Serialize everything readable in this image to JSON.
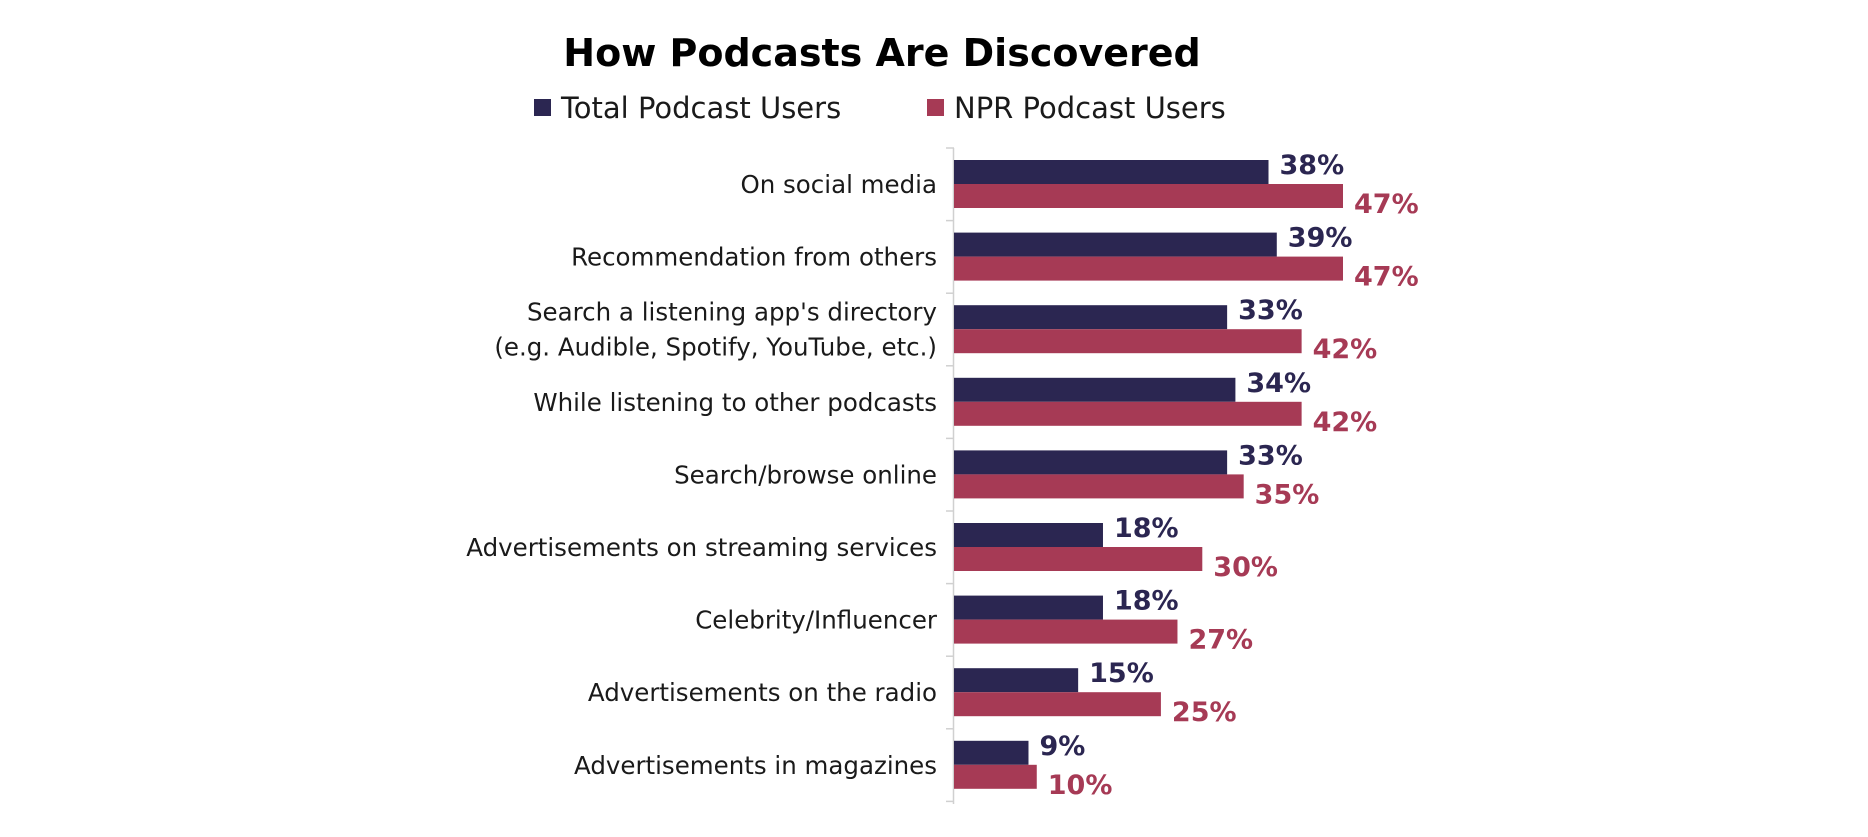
{
  "chart_data": {
    "type": "bar",
    "orientation": "horizontal",
    "title": "How Podcasts Are Discovered",
    "categories": [
      [
        "On social media"
      ],
      [
        "Recommendation from others"
      ],
      [
        "Search a listening app's directory",
        "(e.g. Audible, Spotify, YouTube, etc.)"
      ],
      [
        "While listening to other podcasts"
      ],
      [
        "Search/browse online"
      ],
      [
        "Advertisements on streaming services"
      ],
      [
        "Celebrity/Influencer"
      ],
      [
        "Advertisements on the radio"
      ],
      [
        "Advertisements in magazines"
      ]
    ],
    "series": [
      {
        "name": "Total Podcast Users",
        "color": "#2b2651",
        "values": [
          38,
          39,
          33,
          34,
          33,
          18,
          18,
          15,
          9
        ],
        "labels": [
          "38%",
          "39%",
          "33%",
          "34%",
          "33%",
          "18%",
          "18%",
          "15%",
          "9%"
        ]
      },
      {
        "name": "NPR Podcast Users",
        "color": "#a63a55",
        "values": [
          47,
          47,
          42,
          42,
          35,
          30,
          27,
          25,
          10
        ],
        "labels": [
          "47%",
          "47%",
          "42%",
          "42%",
          "35%",
          "30%",
          "27%",
          "25%",
          "10%"
        ]
      }
    ],
    "xlim": [
      0,
      47
    ],
    "grid": false,
    "legend": "top"
  }
}
